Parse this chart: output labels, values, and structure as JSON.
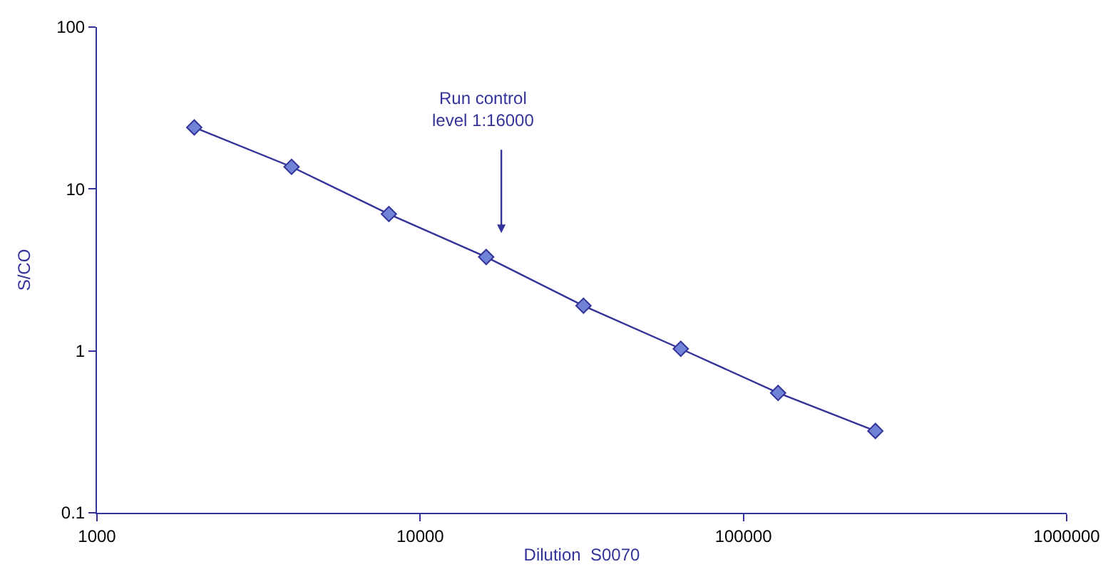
{
  "chart_data": {
    "type": "line",
    "xlabel": "Dilution  S0070",
    "ylabel": "S/CO",
    "x": [
      2000,
      4000,
      8000,
      16000,
      32000,
      64000,
      128000,
      256000
    ],
    "series": [
      {
        "color": "#333399",
        "values": [
          24,
          13.7,
          7.0,
          3.8,
          1.9,
          1.03,
          0.55,
          0.32
        ]
      }
    ],
    "marker": "diamond",
    "line_style": "solid",
    "log": "xy",
    "xlim": [
      1000,
      1000000
    ],
    "xticks": [
      1000,
      10000,
      100000,
      1000000
    ],
    "ylim": [
      0.1,
      100
    ],
    "yticks": [
      0.1,
      1,
      10,
      100
    ],
    "annotations": [
      "Run control\nlevel 1:16000"
    ]
  }
}
